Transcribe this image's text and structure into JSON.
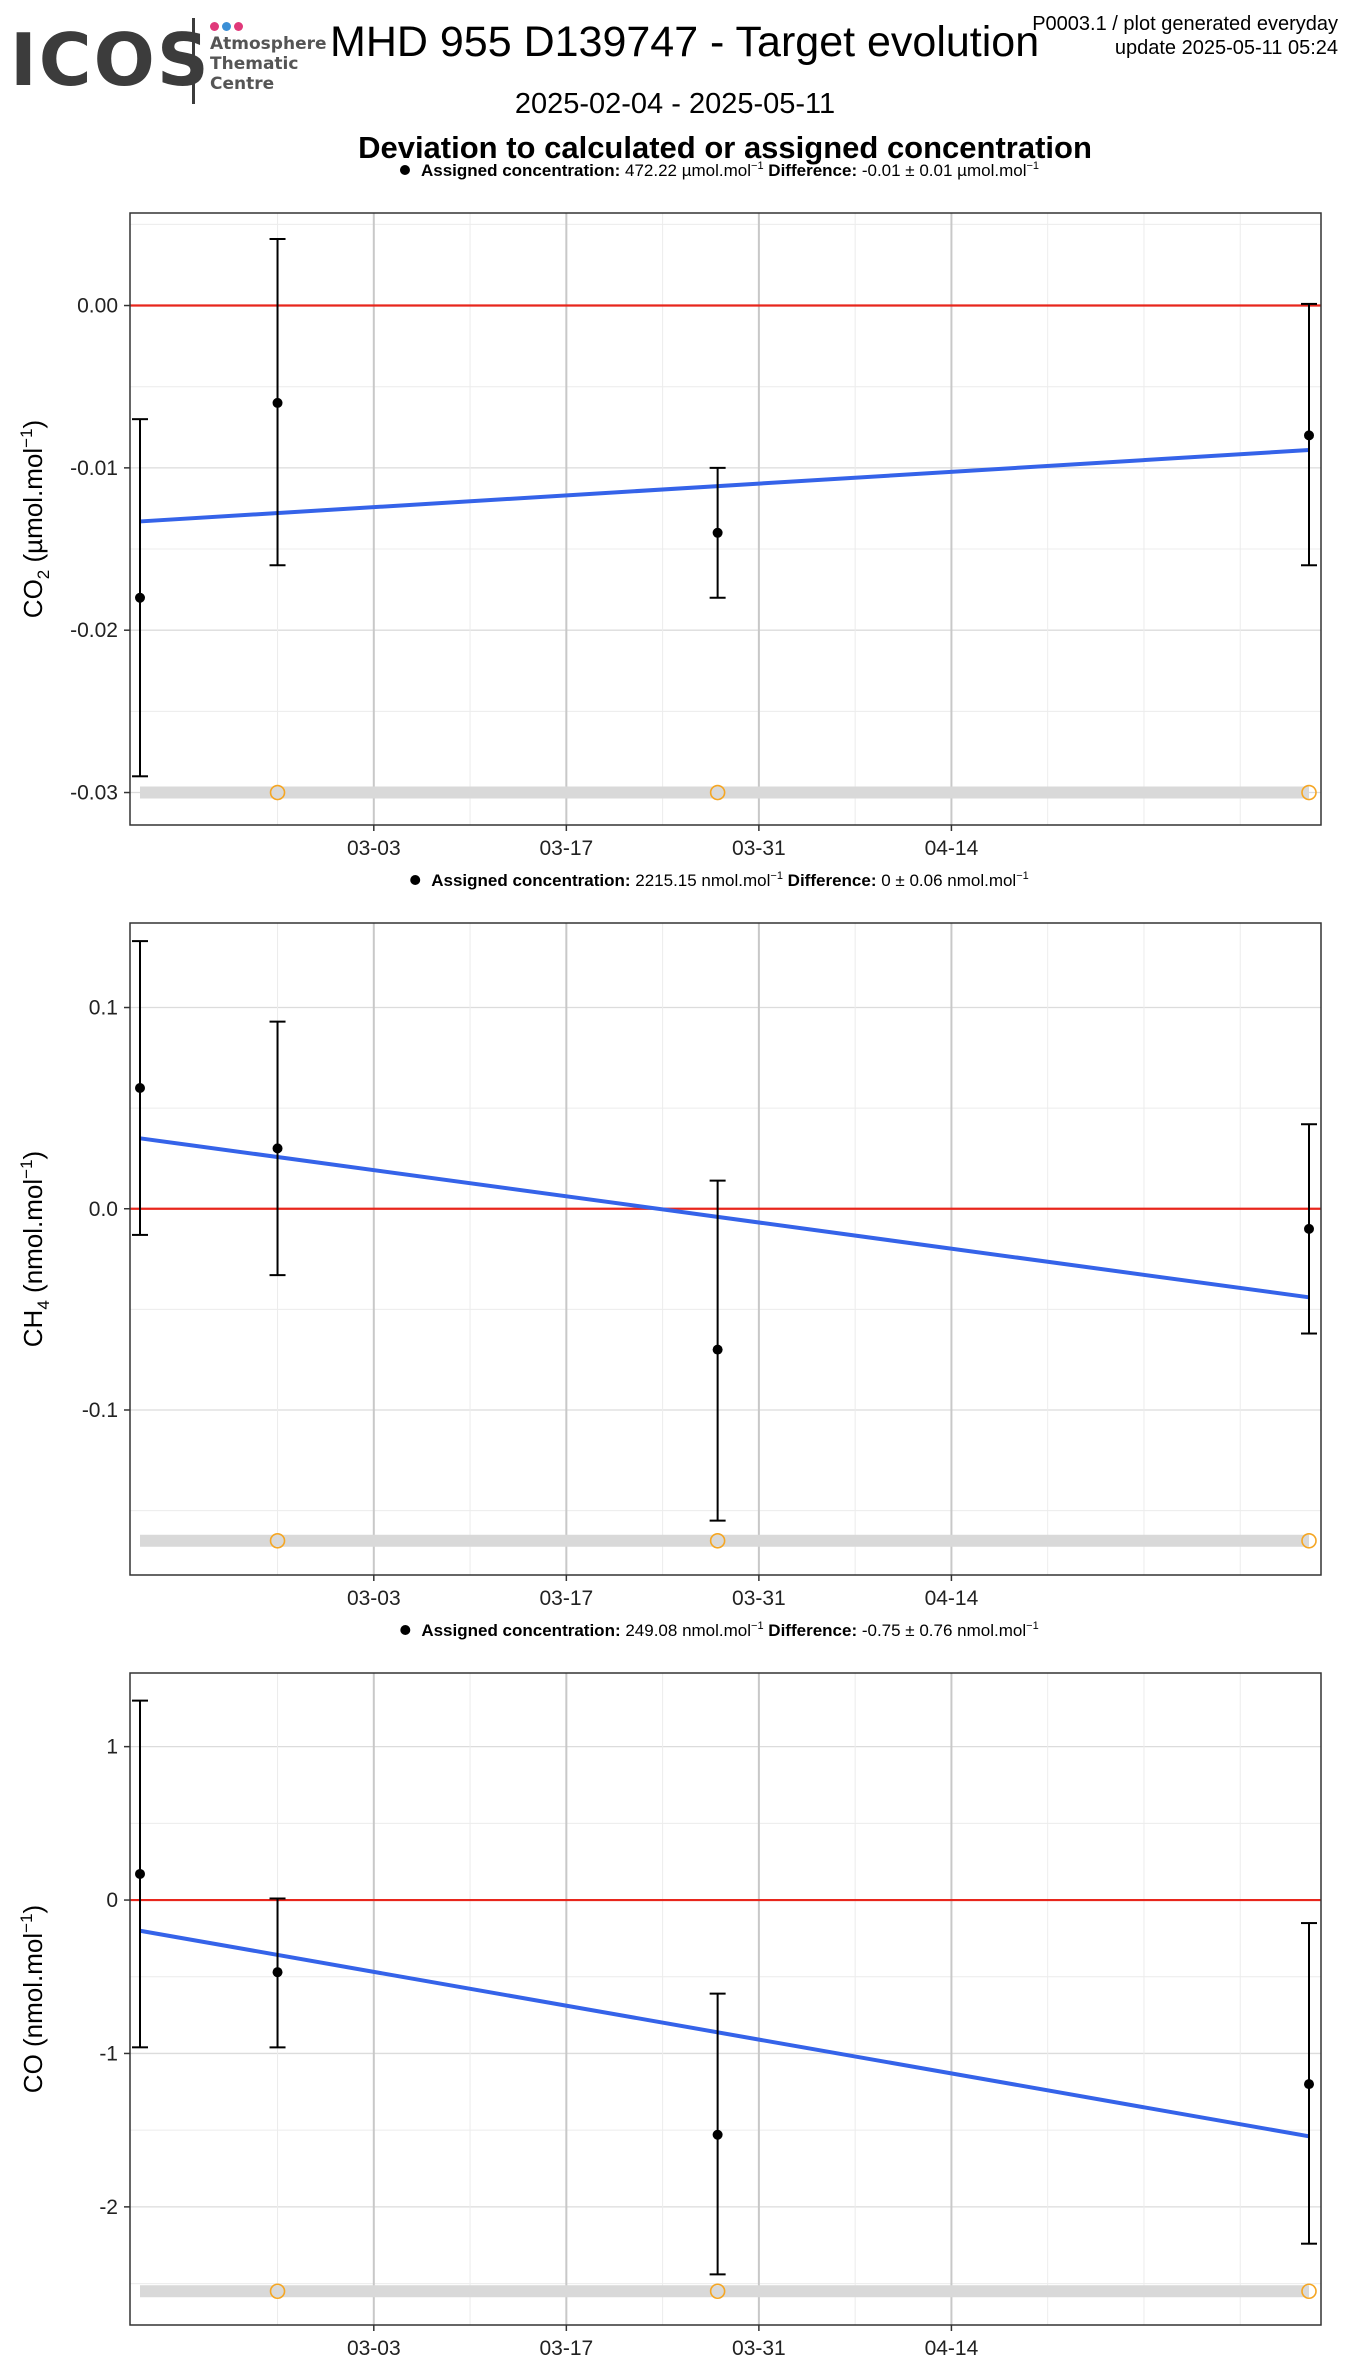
{
  "header": {
    "logo_text": "ICOS",
    "logo_sub": [
      "Atmosphere",
      "Thematic",
      "Centre"
    ],
    "logo_dot_colors": [
      "#e0397a",
      "#3b8fd6",
      "#e0397a"
    ],
    "title": "MHD 955 D139747 - Target evolution",
    "meta_line1": "P0003.1 / plot generated everyday",
    "meta_line2": "update  2025-05-11 05:24",
    "subtitle": "2025-02-04 - 2025-05-11",
    "heading": "Deviation to calculated or assigned concentration"
  },
  "colors": {
    "zero_line": "#e8261c",
    "trend_line": "#3563e9",
    "points": "#000000",
    "flag_circles": "#f5a623",
    "flag_band": "#d9d9d9"
  },
  "chart_data": [
    {
      "type": "scatter",
      "legend": {
        "label": "Assigned concentration:",
        "value": "472.22 µmol.mol",
        "value_sup": "−1",
        "diff_label": "Difference:",
        "diff_value": "-0.01 ± 0.01 µmol.mol",
        "diff_sup": "−1"
      },
      "ylabel": "CO",
      "ylabel_sub": "2",
      "ylabel_unit": " (µmol.mol",
      "ylabel_sup": "−1",
      "ylabel_close": ")",
      "xlim": [
        "2025-02-14",
        "2025-05-10"
      ],
      "ylim": [
        -0.032,
        0.0057
      ],
      "yticks": [
        0.0,
        -0.01,
        -0.02,
        -0.03
      ],
      "ytick_labels": [
        "0.00",
        "-0.01",
        "-0.02",
        "-0.03"
      ],
      "y_minor": [
        0.005,
        -0.005,
        -0.015,
        -0.025
      ],
      "points": [
        {
          "x": "2025-02-14",
          "y": -0.018,
          "lo": -0.029,
          "hi": -0.007
        },
        {
          "x": "2025-02-24",
          "y": -0.006,
          "lo": -0.016,
          "hi": 0.0041
        },
        {
          "x": "2025-03-28",
          "y": -0.014,
          "lo": -0.018,
          "hi": -0.01
        },
        {
          "x": "2025-05-10",
          "y": -0.008,
          "lo": -0.016,
          "hi": 0.0001
        }
      ],
      "trend": [
        {
          "x": "2025-02-14",
          "y": -0.0133
        },
        {
          "x": "2025-05-10",
          "y": -0.0089
        }
      ],
      "flags": [
        "2025-02-24",
        "2025-03-28",
        "2025-05-10"
      ],
      "flag_y": -0.03,
      "band": {
        "from": "2025-02-14",
        "to": "2025-05-10",
        "y": -0.03
      }
    },
    {
      "type": "scatter",
      "legend": {
        "label": "Assigned concentration:",
        "value": "2215.15 nmol.mol",
        "value_sup": "−1",
        "diff_label": "Difference:",
        "diff_value": "0 ± 0.06 nmol.mol",
        "diff_sup": "−1"
      },
      "ylabel": "CH",
      "ylabel_sub": "4",
      "ylabel_unit": " (nmol.mol",
      "ylabel_sup": "−1",
      "ylabel_close": ")",
      "xlim": [
        "2025-02-14",
        "2025-05-10"
      ],
      "ylim": [
        -0.182,
        0.142
      ],
      "yticks": [
        0.1,
        0.0,
        -0.1
      ],
      "ytick_labels": [
        "0.1",
        "0.0",
        "-0.1"
      ],
      "y_minor": [
        0.05,
        -0.05,
        -0.15
      ],
      "points": [
        {
          "x": "2025-02-14",
          "y": 0.06,
          "lo": -0.013,
          "hi": 0.133
        },
        {
          "x": "2025-02-24",
          "y": 0.03,
          "lo": -0.033,
          "hi": 0.093
        },
        {
          "x": "2025-03-28",
          "y": -0.07,
          "lo": -0.155,
          "hi": 0.014
        },
        {
          "x": "2025-05-10",
          "y": -0.01,
          "lo": -0.062,
          "hi": 0.042
        }
      ],
      "trend": [
        {
          "x": "2025-02-14",
          "y": 0.035
        },
        {
          "x": "2025-05-10",
          "y": -0.044
        }
      ],
      "flags": [
        "2025-02-24",
        "2025-03-28",
        "2025-05-10"
      ],
      "flag_y": -0.165,
      "band": {
        "from": "2025-02-14",
        "to": "2025-05-10",
        "y": -0.165
      }
    },
    {
      "type": "scatter",
      "legend": {
        "label": "Assigned concentration:",
        "value": "249.08 nmol.mol",
        "value_sup": "−1",
        "diff_label": "Difference:",
        "diff_value": "-0.75 ± 0.76 nmol.mol",
        "diff_sup": "−1"
      },
      "ylabel": "CO (nmol.mol",
      "ylabel_sub": "",
      "ylabel_unit": "",
      "ylabel_sup": "−1",
      "ylabel_close": ")",
      "xlim": [
        "2025-02-14",
        "2025-05-10"
      ],
      "ylim": [
        -2.77,
        1.48
      ],
      "yticks": [
        1,
        0,
        -1,
        -2
      ],
      "ytick_labels": [
        "1",
        "0",
        "-1",
        "-2"
      ],
      "y_minor": [
        0.5,
        -0.5,
        -1.5,
        -2.5
      ],
      "points": [
        {
          "x": "2025-02-14",
          "y": 0.17,
          "lo": -0.96,
          "hi": 1.3
        },
        {
          "x": "2025-02-24",
          "y": -0.47,
          "lo": -0.96,
          "hi": 0.01
        },
        {
          "x": "2025-03-28",
          "y": -1.53,
          "lo": -2.44,
          "hi": -0.61
        },
        {
          "x": "2025-05-10",
          "y": -1.2,
          "lo": -2.24,
          "hi": -0.15
        }
      ],
      "trend": [
        {
          "x": "2025-02-14",
          "y": -0.2
        },
        {
          "x": "2025-05-10",
          "y": -1.54
        }
      ],
      "flags": [
        "2025-02-24",
        "2025-03-28",
        "2025-05-10"
      ],
      "flag_y": -2.55,
      "band": {
        "from": "2025-02-14",
        "to": "2025-05-10",
        "y": -2.55
      }
    }
  ],
  "x_axis": {
    "major_ticks": [
      "2025-03-03",
      "2025-03-17",
      "2025-03-31",
      "2025-04-14"
    ],
    "major_labels": [
      "03-03",
      "03-17",
      "03-31",
      "04-14"
    ],
    "minor_ticks": [
      "2025-02-24",
      "2025-03-10",
      "2025-03-24",
      "2025-04-07",
      "2025-04-21",
      "2025-04-28",
      "2025-05-05"
    ]
  }
}
